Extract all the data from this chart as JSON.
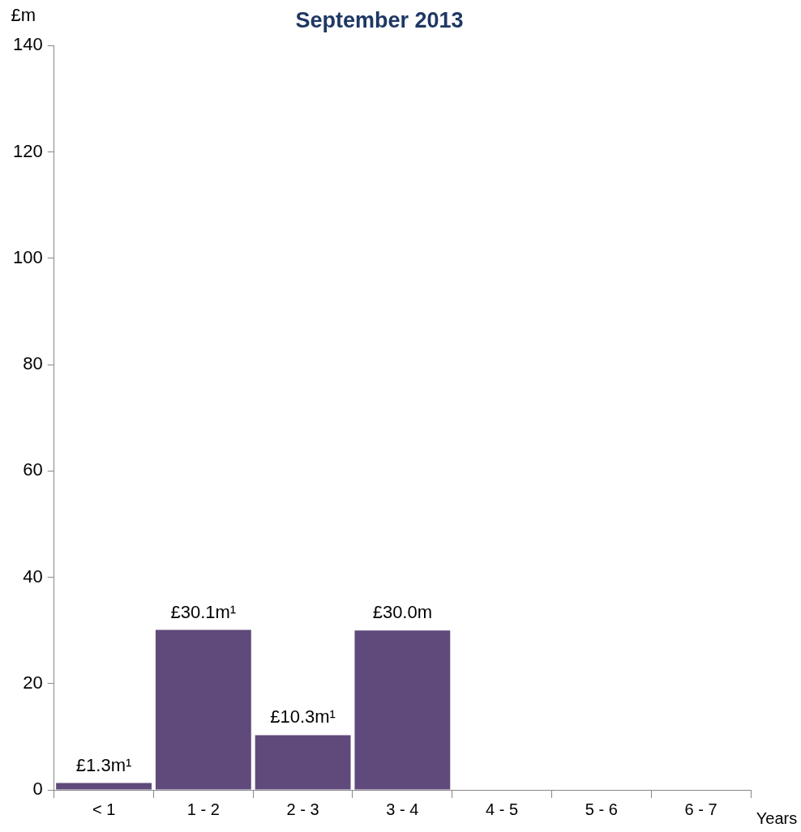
{
  "chart_data": {
    "type": "bar",
    "title": "September 2013",
    "xlabel": "Years",
    "ylabel": "£m",
    "categories": [
      "< 1",
      "1 - 2",
      "2 - 3",
      "3 - 4",
      "4 - 5",
      "5 - 6",
      "6 - 7"
    ],
    "values": [
      1.3,
      30.1,
      10.3,
      30.0,
      null,
      null,
      null
    ],
    "value_labels": [
      "£1.3m¹",
      "£30.1m¹",
      "£10.3m¹",
      "£30.0m",
      null,
      null,
      null
    ],
    "color": "#604a7b",
    "ylim": [
      0,
      140
    ],
    "yticks": [
      0,
      20,
      40,
      60,
      80,
      100,
      120,
      140
    ],
    "grid": false,
    "legend": false
  }
}
